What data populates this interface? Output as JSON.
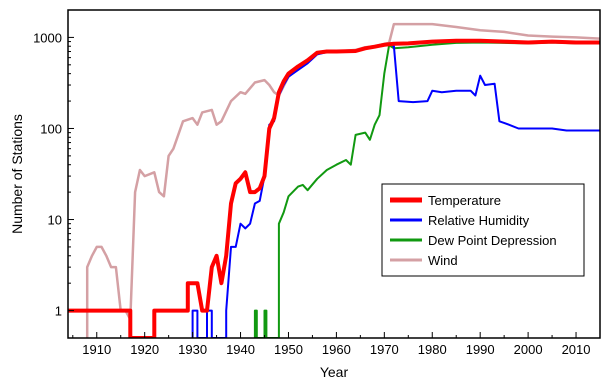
{
  "chart_data": {
    "type": "line",
    "xlabel": "Year",
    "ylabel": "Number of Stations",
    "xlim": [
      1904,
      2015
    ],
    "ylim": [
      0.5,
      2000
    ],
    "yscale": "log",
    "x_ticks": [
      1910,
      1920,
      1930,
      1940,
      1950,
      1960,
      1970,
      1980,
      1990,
      2000,
      2010
    ],
    "y_ticks": [
      1,
      10,
      100,
      1000
    ],
    "legend_position": "bottom-right",
    "grid": false,
    "series": [
      {
        "name": "Temperature",
        "color": "#ff0000",
        "width": 4,
        "points": [
          [
            1904,
            1
          ],
          [
            1917,
            1
          ],
          [
            1917,
            0.5
          ],
          [
            1922,
            0.5
          ],
          [
            1922,
            1
          ],
          [
            1929,
            1
          ],
          [
            1929,
            2
          ],
          [
            1931,
            2
          ],
          [
            1932,
            1
          ],
          [
            1933,
            1
          ],
          [
            1934,
            3
          ],
          [
            1935,
            4
          ],
          [
            1936,
            2
          ],
          [
            1937,
            4
          ],
          [
            1938,
            15
          ],
          [
            1939,
            25
          ],
          [
            1940,
            28
          ],
          [
            1941,
            33
          ],
          [
            1942,
            20
          ],
          [
            1943,
            20
          ],
          [
            1944,
            22
          ],
          [
            1945,
            30
          ],
          [
            1946,
            100
          ],
          [
            1947,
            130
          ],
          [
            1948,
            250
          ],
          [
            1949,
            330
          ],
          [
            1950,
            400
          ],
          [
            1952,
            480
          ],
          [
            1954,
            560
          ],
          [
            1956,
            680
          ],
          [
            1958,
            700
          ],
          [
            1960,
            700
          ],
          [
            1964,
            710
          ],
          [
            1966,
            760
          ],
          [
            1968,
            790
          ],
          [
            1970,
            830
          ],
          [
            1972,
            850
          ],
          [
            1975,
            860
          ],
          [
            1980,
            900
          ],
          [
            1985,
            920
          ],
          [
            1990,
            920
          ],
          [
            1995,
            900
          ],
          [
            2000,
            880
          ],
          [
            2005,
            900
          ],
          [
            2010,
            880
          ],
          [
            2015,
            880
          ]
        ]
      },
      {
        "name": "Relative Humidity",
        "color": "#0000ff",
        "width": 2,
        "points": [
          [
            1930,
            0.5
          ],
          [
            1930,
            1
          ],
          [
            1931,
            1
          ],
          [
            1931,
            0.5
          ],
          [
            1933,
            0.5
          ],
          [
            1933,
            1
          ],
          [
            1934,
            1
          ],
          [
            1934,
            0.5
          ],
          [
            1937,
            0.5
          ],
          [
            1937,
            1
          ],
          [
            1938,
            5
          ],
          [
            1939,
            5
          ],
          [
            1940,
            9
          ],
          [
            1941,
            8
          ],
          [
            1942,
            9
          ],
          [
            1943,
            15
          ],
          [
            1944,
            16
          ],
          [
            1945,
            30
          ],
          [
            1946,
            110
          ],
          [
            1947,
            120
          ],
          [
            1948,
            230
          ],
          [
            1949,
            300
          ],
          [
            1950,
            370
          ],
          [
            1952,
            440
          ],
          [
            1954,
            520
          ],
          [
            1956,
            650
          ],
          [
            1958,
            690
          ],
          [
            1960,
            690
          ],
          [
            1964,
            700
          ],
          [
            1966,
            750
          ],
          [
            1968,
            790
          ],
          [
            1970,
            830
          ],
          [
            1971,
            860
          ],
          [
            1972,
            800
          ],
          [
            1973,
            200
          ],
          [
            1976,
            195
          ],
          [
            1979,
            200
          ],
          [
            1980,
            260
          ],
          [
            1982,
            250
          ],
          [
            1985,
            260
          ],
          [
            1988,
            260
          ],
          [
            1989,
            230
          ],
          [
            1990,
            380
          ],
          [
            1991,
            300
          ],
          [
            1993,
            310
          ],
          [
            1994,
            120
          ],
          [
            1995,
            115
          ],
          [
            1996,
            110
          ],
          [
            1998,
            100
          ],
          [
            2000,
            100
          ],
          [
            2005,
            100
          ],
          [
            2008,
            95
          ],
          [
            2010,
            95
          ],
          [
            2015,
            95
          ]
        ]
      },
      {
        "name": "Dew Point Depression",
        "color": "#119911",
        "width": 2,
        "points": [
          [
            1943,
            0.5
          ],
          [
            1943,
            1
          ],
          [
            1943.4,
            1
          ],
          [
            1943.4,
            0.5
          ],
          [
            1945,
            0.5
          ],
          [
            1945,
            1
          ],
          [
            1945.4,
            1
          ],
          [
            1945.4,
            0.5
          ],
          [
            1948,
            0.5
          ],
          [
            1948,
            9
          ],
          [
            1949,
            12
          ],
          [
            1950,
            18
          ],
          [
            1952,
            23
          ],
          [
            1953,
            24
          ],
          [
            1954,
            21
          ],
          [
            1956,
            28
          ],
          [
            1958,
            35
          ],
          [
            1960,
            40
          ],
          [
            1962,
            45
          ],
          [
            1963,
            40
          ],
          [
            1964,
            85
          ],
          [
            1966,
            90
          ],
          [
            1967,
            75
          ],
          [
            1968,
            110
          ],
          [
            1969,
            140
          ],
          [
            1970,
            400
          ],
          [
            1971,
            820
          ],
          [
            1972,
            760
          ],
          [
            1975,
            780
          ],
          [
            1980,
            830
          ],
          [
            1985,
            870
          ],
          [
            1990,
            880
          ],
          [
            1995,
            870
          ],
          [
            2000,
            860
          ],
          [
            2005,
            880
          ],
          [
            2010,
            860
          ],
          [
            2015,
            860
          ]
        ]
      },
      {
        "name": "Wind",
        "color": "#d4a0a4",
        "width": 2.5,
        "points": [
          [
            1908,
            0.5
          ],
          [
            1908,
            3
          ],
          [
            1909,
            4
          ],
          [
            1910,
            5
          ],
          [
            1911,
            5
          ],
          [
            1912,
            4
          ],
          [
            1913,
            3
          ],
          [
            1914,
            3
          ],
          [
            1915,
            1
          ],
          [
            1916,
            1
          ],
          [
            1917,
            0.8
          ],
          [
            1918,
            20
          ],
          [
            1919,
            35
          ],
          [
            1920,
            30
          ],
          [
            1922,
            33
          ],
          [
            1923,
            20
          ],
          [
            1924,
            18
          ],
          [
            1925,
            50
          ],
          [
            1926,
            60
          ],
          [
            1928,
            120
          ],
          [
            1930,
            130
          ],
          [
            1931,
            110
          ],
          [
            1932,
            150
          ],
          [
            1934,
            160
          ],
          [
            1935,
            110
          ],
          [
            1936,
            120
          ],
          [
            1938,
            200
          ],
          [
            1940,
            250
          ],
          [
            1941,
            240
          ],
          [
            1943,
            320
          ],
          [
            1945,
            340
          ],
          [
            1946,
            300
          ],
          [
            1947,
            250
          ],
          [
            1948,
            230
          ],
          [
            1950,
            370
          ],
          [
            1952,
            450
          ],
          [
            1954,
            530
          ],
          [
            1956,
            670
          ],
          [
            1958,
            700
          ],
          [
            1960,
            700
          ],
          [
            1964,
            730
          ],
          [
            1966,
            780
          ],
          [
            1968,
            800
          ],
          [
            1970,
            850
          ],
          [
            1971,
            870
          ],
          [
            1972,
            1400
          ],
          [
            1975,
            1400
          ],
          [
            1980,
            1400
          ],
          [
            1985,
            1300
          ],
          [
            1990,
            1200
          ],
          [
            1995,
            1150
          ],
          [
            2000,
            1050
          ],
          [
            2005,
            1020
          ],
          [
            2010,
            1000
          ],
          [
            2015,
            970
          ]
        ]
      }
    ]
  }
}
